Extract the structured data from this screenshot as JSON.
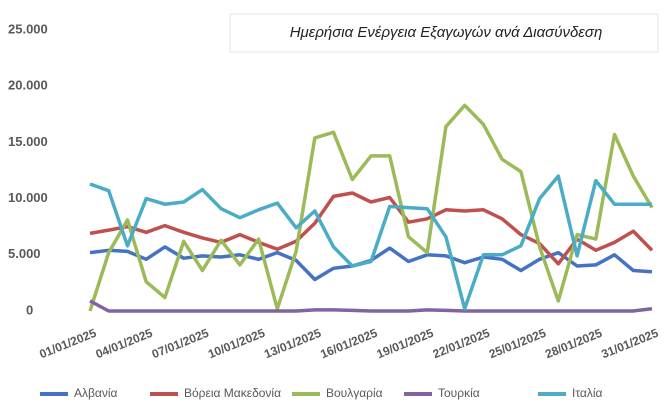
{
  "chart_data": {
    "type": "line",
    "title": "Ημερήσια Ενέργεια Εξαγωγών ανά Διασύνδεση",
    "categories": [
      "01/01/2025",
      null,
      null,
      "04/01/2025",
      null,
      null,
      "07/01/2025",
      null,
      null,
      "10/01/2025",
      null,
      null,
      "13/01/2025",
      null,
      null,
      "16/01/2025",
      null,
      null,
      "19/01/2025",
      null,
      null,
      "22/01/2025",
      null,
      null,
      "25/01/2025",
      null,
      null,
      "28/01/2025",
      null,
      null,
      "31/01/2025"
    ],
    "series": [
      {
        "name": "Αλβανία",
        "color": "#4472c4",
        "values": [
          5200,
          5400,
          5300,
          4600,
          5700,
          4700,
          4900,
          4800,
          5000,
          4600,
          5200,
          4500,
          2800,
          3800,
          4000,
          4500,
          5600,
          4400,
          5000,
          4900,
          4300,
          4800,
          4600,
          3600,
          4600,
          5200,
          4000,
          4100,
          5000,
          3600,
          3500
        ]
      },
      {
        "name": "Βόρεια Μακεδονία",
        "color": "#c0504d",
        "values": [
          6900,
          7200,
          7500,
          7000,
          7600,
          7000,
          6500,
          6100,
          6800,
          6100,
          5500,
          6200,
          7800,
          10200,
          10500,
          9700,
          10100,
          7900,
          8200,
          9000,
          8900,
          9000,
          8200,
          6800,
          6000,
          4200,
          6400,
          5400,
          6100,
          7100,
          5400
        ]
      },
      {
        "name": "Βουλγαρία",
        "color": "#9bbb59",
        "values": [
          0,
          5200,
          8100,
          2600,
          1200,
          6200,
          3600,
          6300,
          4100,
          6400,
          200,
          5300,
          15400,
          15900,
          11700,
          13800,
          13800,
          6600,
          5200,
          16400,
          18300,
          16600,
          13500,
          12400,
          5700,
          900,
          6800,
          6400,
          15700,
          12000,
          9200
        ]
      },
      {
        "name": "Τουρκία",
        "color": "#8064a2",
        "values": [
          900,
          0,
          0,
          0,
          0,
          0,
          0,
          0,
          0,
          0,
          0,
          0,
          100,
          100,
          50,
          0,
          0,
          0,
          100,
          50,
          0,
          0,
          0,
          0,
          0,
          0,
          0,
          0,
          0,
          0,
          200
        ]
      },
      {
        "name": "Ιταλία",
        "color": "#4bacc6",
        "values": [
          11300,
          10700,
          5800,
          10000,
          9500,
          9700,
          10800,
          9100,
          8300,
          9000,
          9600,
          7400,
          8900,
          5700,
          4000,
          4400,
          9300,
          9200,
          9100,
          6600,
          200,
          5000,
          5000,
          5800,
          10000,
          12000,
          4900,
          11600,
          9500,
          9500,
          9500
        ]
      }
    ],
    "ylim": [
      0,
      25000
    ],
    "yticks": [
      0,
      {
        "value": 5000,
        "label": "5.000"
      },
      {
        "value": 10000,
        "label": "10.000"
      },
      {
        "value": 15000,
        "label": "15.000"
      },
      {
        "value": 20000,
        "label": "20.000"
      },
      {
        "value": 25000,
        "label": "25.000"
      }
    ],
    "grid": false
  }
}
